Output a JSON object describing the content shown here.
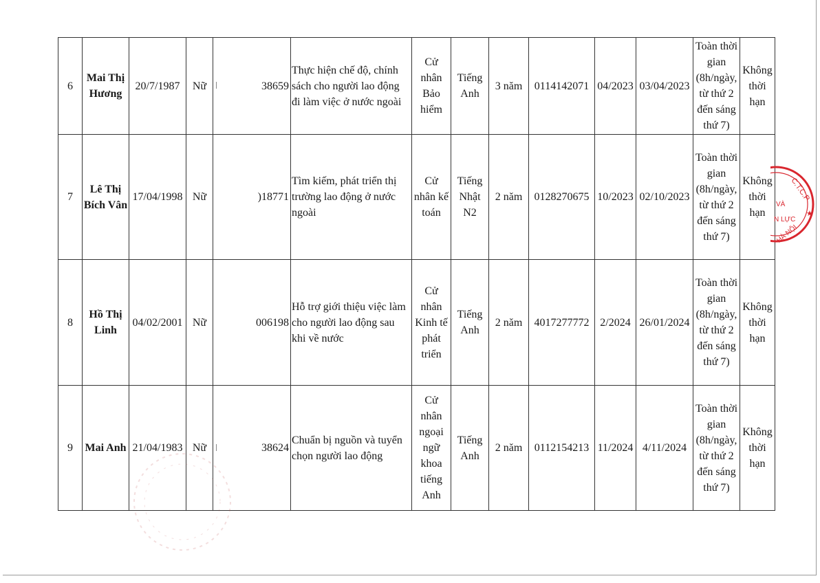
{
  "rows": [
    {
      "stt": "6",
      "name": "Mai Thị Hương",
      "dob": "20/7/1987",
      "gender": "Nữ",
      "id": "38659",
      "id_partial": true,
      "job": "Thực hiện chế độ, chính sách cho người lao động đi làm việc ở nước ngoài",
      "degree": "Cử nhân Bảo hiểm",
      "language": "Tiếng Anh",
      "experience": "3 năm",
      "insurance": "0114142071",
      "start_month": "04/2023",
      "contract_date": "03/04/2023",
      "work_time": "Toàn thời gian (8h/ngày, từ thứ 2 đến sáng thứ 7)",
      "term": "Không thời hạn"
    },
    {
      "stt": "7",
      "name": "Lê Thị Bích Vân",
      "dob": "17/04/1998",
      "gender": "Nữ",
      "id": ")18771",
      "id_partial": false,
      "job": "Tìm kiếm, phát triển thị trường lao động ở nước ngoài",
      "degree": "Cử nhân kế toán",
      "language": "Tiếng Nhật N2",
      "experience": "2 năm",
      "insurance": "0128270675",
      "start_month": "10/2023",
      "contract_date": "02/10/2023",
      "work_time": "Toàn thời gian (8h/ngày, từ thứ 2 đến sáng thứ 7)",
      "term": "Không thời hạn"
    },
    {
      "stt": "8",
      "name": "Hồ Thị Linh",
      "dob": "04/02/2001",
      "gender": "Nữ",
      "id": "006198",
      "id_partial": false,
      "job": "Hỗ trợ giới thiệu việc làm cho người lao động sau khi về nước",
      "degree": "Cử nhân Kinh tế phát triển",
      "language": "Tiếng Anh",
      "experience": "2 năm",
      "insurance": "4017277772",
      "start_month": "2/2024",
      "contract_date": "26/01/2024",
      "work_time": "Toàn thời gian (8h/ngày, từ thứ 2 đến sáng thứ 7)",
      "term": "Không thời hạn"
    },
    {
      "stt": "9",
      "name": "Mai Anh",
      "dob": "21/04/1983",
      "gender": "Nữ",
      "id": "38624",
      "id_partial": true,
      "job": "Chuẩn bị nguồn và tuyển chọn người lao động",
      "degree": "Cử nhân ngoại ngữ khoa tiếng Anh",
      "language": "Tiếng Anh",
      "experience": "2 năm",
      "insurance": "0112154213",
      "start_month": "11/2024",
      "contract_date": "4/11/2024",
      "work_time": "Toàn thời gian (8h/ngày, từ thứ 2 đến sáng thứ 7)",
      "term": "Không thời hạn"
    }
  ],
  "stamp": {
    "text": "C.T.C.P ... VÀ ... N LỰC ... HÀ NỘI",
    "color": "#d9262e"
  }
}
